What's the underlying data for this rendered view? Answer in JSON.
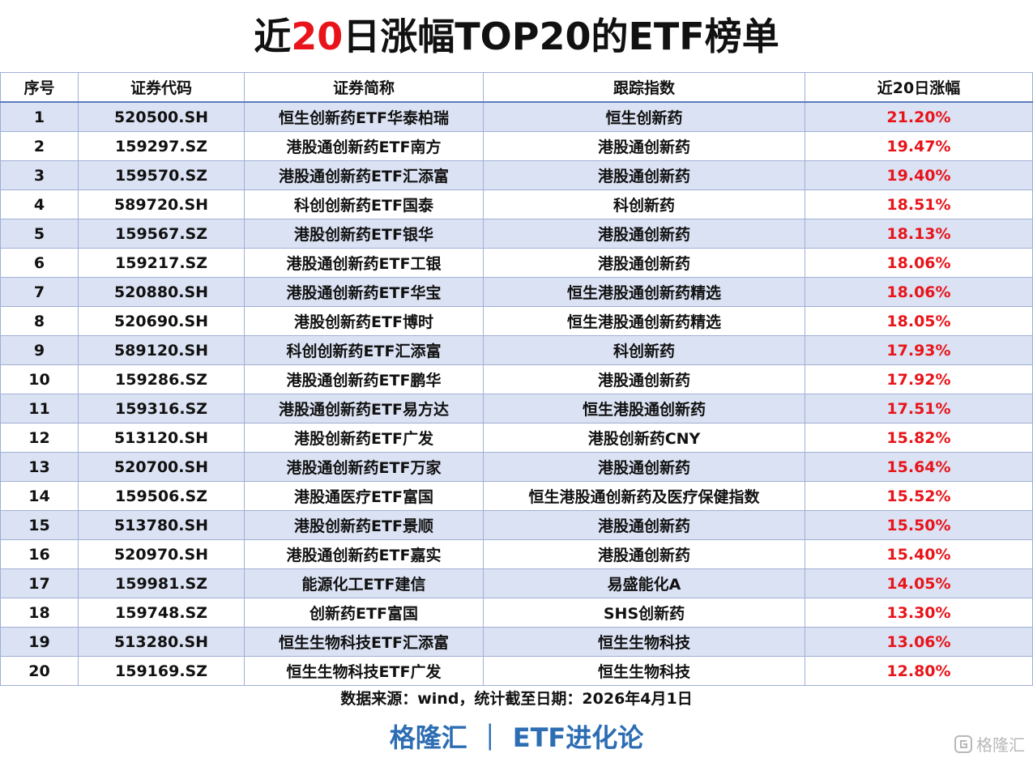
{
  "title": {
    "parts": [
      "近",
      "20",
      "日涨幅TOP20的ETF榜单"
    ]
  },
  "table": {
    "headers": [
      "序号",
      "证券代码",
      "证券简称",
      "跟踪指数",
      "近20日涨幅"
    ],
    "rows": [
      [
        "1",
        "520500.SH",
        "恒生创新药ETF华泰柏瑞",
        "恒生创新药",
        "21.20%"
      ],
      [
        "2",
        "159297.SZ",
        "港股通创新药ETF南方",
        "港股通创新药",
        "19.47%"
      ],
      [
        "3",
        "159570.SZ",
        "港股通创新药ETF汇添富",
        "港股通创新药",
        "19.40%"
      ],
      [
        "4",
        "589720.SH",
        "科创创新药ETF国泰",
        "科创新药",
        "18.51%"
      ],
      [
        "5",
        "159567.SZ",
        "港股创新药ETF银华",
        "港股通创新药",
        "18.13%"
      ],
      [
        "6",
        "159217.SZ",
        "港股通创新药ETF工银",
        "港股通创新药",
        "18.06%"
      ],
      [
        "7",
        "520880.SH",
        "港股通创新药ETF华宝",
        "恒生港股通创新药精选",
        "18.06%"
      ],
      [
        "8",
        "520690.SH",
        "港股创新药ETF博时",
        "恒生港股通创新药精选",
        "18.05%"
      ],
      [
        "9",
        "589120.SH",
        "科创创新药ETF汇添富",
        "科创新药",
        "17.93%"
      ],
      [
        "10",
        "159286.SZ",
        "港股通创新药ETF鹏华",
        "港股通创新药",
        "17.92%"
      ],
      [
        "11",
        "159316.SZ",
        "港股通创新药ETF易方达",
        "恒生港股通创新药",
        "17.51%"
      ],
      [
        "12",
        "513120.SH",
        "港股创新药ETF广发",
        "港股创新药CNY",
        "15.82%"
      ],
      [
        "13",
        "520700.SH",
        "港股通创新药ETF万家",
        "港股通创新药",
        "15.64%"
      ],
      [
        "14",
        "159506.SZ",
        "港股通医疗ETF富国",
        "恒生港股通创新药及医疗保健指数",
        "15.52%"
      ],
      [
        "15",
        "513780.SH",
        "港股创新药ETF景顺",
        "港股通创新药",
        "15.50%"
      ],
      [
        "16",
        "520970.SH",
        "港股通创新药ETF嘉实",
        "港股通创新药",
        "15.40%"
      ],
      [
        "17",
        "159981.SZ",
        "能源化工ETF建信",
        "易盛能化A",
        "14.05%"
      ],
      [
        "18",
        "159748.SZ",
        "创新药ETF富国",
        "SHS创新药",
        "13.30%"
      ],
      [
        "19",
        "513280.SH",
        "恒生生物科技ETF汇添富",
        "恒生生物科技",
        "13.06%"
      ],
      [
        "20",
        "159169.SZ",
        "恒生生物科技ETF广发",
        "恒生生物科技",
        "12.80%"
      ]
    ]
  },
  "source": "数据来源：wind，统计截至日期：2026年4月1日",
  "footer": {
    "left": "格隆汇",
    "separator": "｜",
    "right": "ETF进化论"
  },
  "watermark": "格隆汇"
}
